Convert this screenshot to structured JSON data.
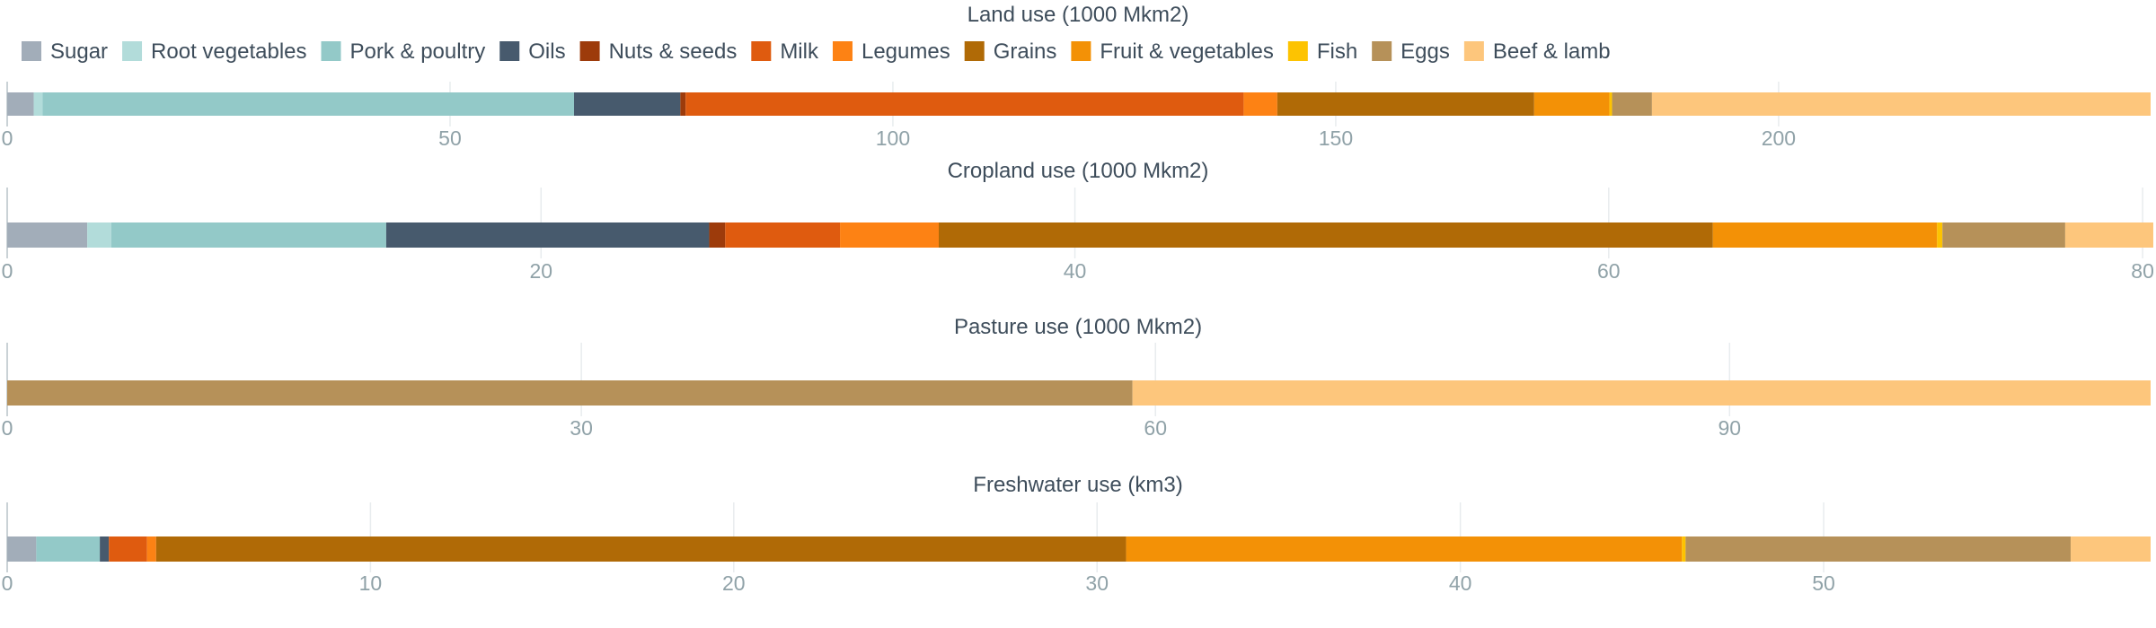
{
  "chart_data": {
    "type": "bar",
    "stacked": true,
    "orientation": "horizontal",
    "legend": {
      "position": "top-left",
      "items": [
        {
          "name": "Sugar",
          "color": "#a2adb9"
        },
        {
          "name": "Root vegetables",
          "color": "#b2dcda"
        },
        {
          "name": "Pork & poultry",
          "color": "#93c9c8"
        },
        {
          "name": "Oils",
          "color": "#475a6d"
        },
        {
          "name": "Nuts & seeds",
          "color": "#9d3b0b"
        },
        {
          "name": "Milk",
          "color": "#df5b0f"
        },
        {
          "name": "Legumes",
          "color": "#fd8214"
        },
        {
          "name": "Grains",
          "color": "#b06a06"
        },
        {
          "name": "Fruit & vegetables",
          "color": "#f39106"
        },
        {
          "name": "Fish",
          "color": "#fdc301"
        },
        {
          "name": "Eggs",
          "color": "#b69159"
        },
        {
          "name": "Beef & lamb",
          "color": "#fdc67c"
        }
      ]
    },
    "panels": [
      {
        "title": "Land use (1000 Mkm2)",
        "xlim": [
          0,
          242
        ],
        "ticks": [
          0,
          50,
          100,
          150,
          200
        ],
        "grid": true,
        "values": {
          "Sugar": 3,
          "Root vegetables": 1,
          "Pork & poultry": 60,
          "Oils": 12,
          "Nuts & seeds": 0.6,
          "Milk": 63,
          "Legumes": 3.8,
          "Grains": 29,
          "Fruit & vegetables": 8.5,
          "Fish": 0.3,
          "Eggs": 4.5,
          "Beef & lamb": 56.3
        }
      },
      {
        "title": "Cropland use (1000 Mkm2)",
        "xlim": [
          0,
          80.3
        ],
        "ticks": [
          0,
          20,
          40,
          60,
          80
        ],
        "grid": true,
        "values": {
          "Sugar": 3,
          "Root vegetables": 0.9,
          "Pork & poultry": 10.3,
          "Oils": 12.1,
          "Nuts & seeds": 0.6,
          "Milk": 4.3,
          "Legumes": 3.7,
          "Grains": 29,
          "Fruit & vegetables": 8.4,
          "Fish": 0.2,
          "Eggs": 4.6,
          "Beef & lamb": 3.3
        }
      },
      {
        "title": "Pasture use (1000 Mkm2)",
        "xlim": [
          0,
          112
        ],
        "ticks": [
          0,
          30,
          60,
          90
        ],
        "grid": true,
        "values": {
          "Sugar": 0,
          "Root vegetables": 0,
          "Pork & poultry": 0,
          "Oils": 0,
          "Nuts & seeds": 0,
          "Milk": 0,
          "Legumes": 0,
          "Grains": 0,
          "Fruit & vegetables": 0,
          "Fish": 0,
          "Eggs": 58.8,
          "Beef & lamb": 53.2
        }
      },
      {
        "title": "Freshwater use (km3)",
        "xlim": [
          0,
          59
        ],
        "ticks": [
          0,
          10,
          20,
          30,
          40,
          50
        ],
        "grid": true,
        "values": {
          "Sugar": 0.8,
          "Root vegetables": 0,
          "Pork & poultry": 1.75,
          "Oils": 0.25,
          "Nuts & seeds": 0,
          "Milk": 1.05,
          "Legumes": 0.25,
          "Grains": 26.7,
          "Fruit & vegetables": 15.3,
          "Fish": 0.1,
          "Eggs": 10.6,
          "Beef & lamb": 2.2
        }
      }
    ]
  }
}
